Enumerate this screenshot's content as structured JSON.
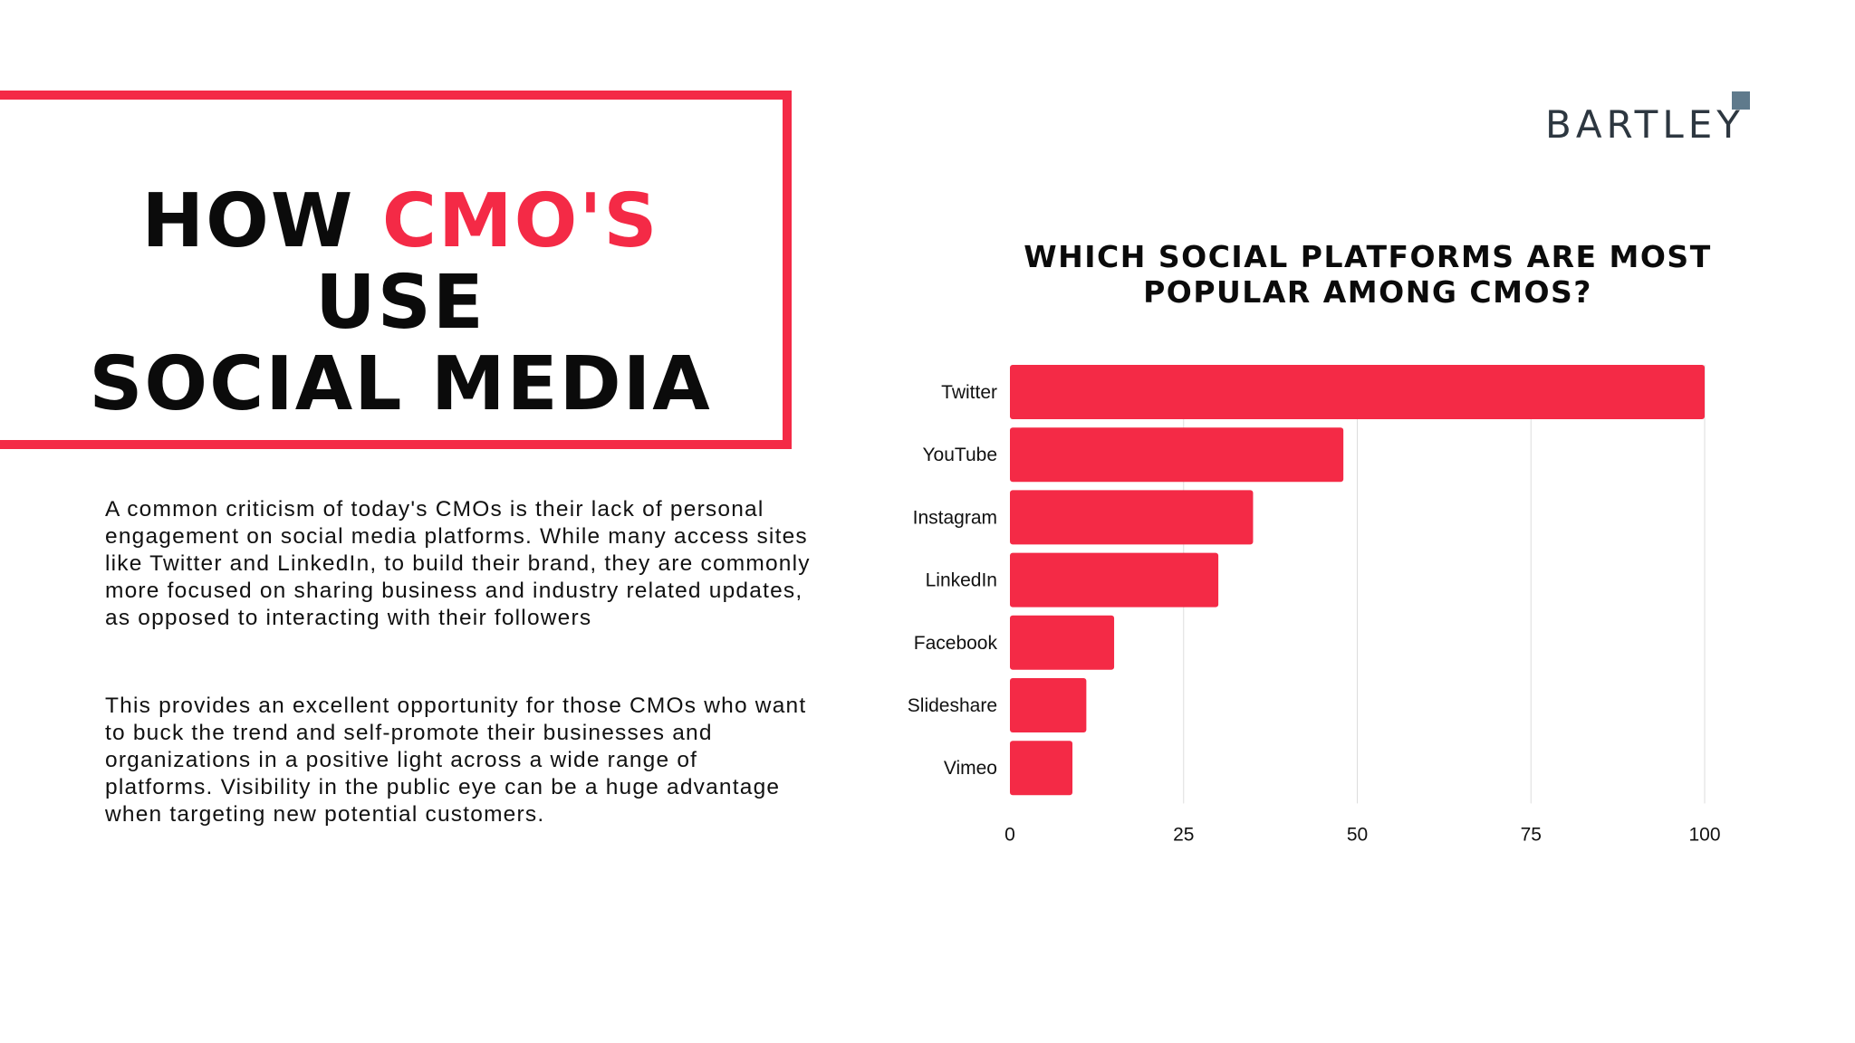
{
  "header": {
    "title_line1_part1": "HOW ",
    "title_line1_accent": "CMO'S",
    "title_line1_part2": " USE",
    "title_line2": "SOCIAL MEDIA",
    "accent_color": "#f42a46"
  },
  "brand": {
    "name": "BARTLEY",
    "square_color": "#5f7a8c"
  },
  "body": {
    "paragraph1": "A common criticism of today's CMOs is their lack of personal engagement on social media platforms. While many access sites like Twitter and LinkedIn, to build their brand, they are commonly more focused on sharing business and industry related updates, as opposed to interacting with their followers",
    "paragraph2": "This provides an excellent opportunity for those CMOs who want to buck the trend and self-promote their businesses and organizations in a positive light across a wide range of platforms. Visibility in the public eye can be a huge advantage when targeting new potential customers."
  },
  "chart_data": {
    "type": "bar",
    "orientation": "horizontal",
    "title_line1": "WHICH SOCIAL PLATFORMS ARE MOST",
    "title_line2": "POPULAR AMONG CMOS?",
    "categories": [
      "Twitter",
      "YouTube",
      "Instagram",
      "LinkedIn",
      "Facebook",
      "Slideshare",
      "Vimeo"
    ],
    "values": [
      100,
      48,
      35,
      30,
      15,
      11,
      9
    ],
    "xlim": [
      0,
      100
    ],
    "xticks": [
      0,
      25,
      50,
      75,
      100
    ],
    "grid": true,
    "bar_color": "#f42a46",
    "grid_color": "#dddddd"
  }
}
